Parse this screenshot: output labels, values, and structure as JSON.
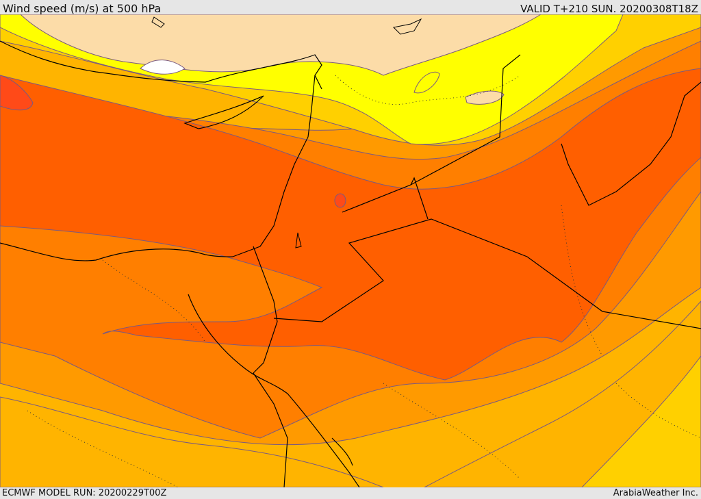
{
  "header": {
    "title": "Wind speed (m/s) at 500 hPa",
    "valid_time": "VALID T+210 SUN. 20200308T18Z"
  },
  "footer": {
    "model_run": "ECMWF MODEL RUN: 20200229T00Z",
    "provider": "ArabiaWeather Inc."
  },
  "colors": {
    "band_white": "#ffffff",
    "band_wheat": "#fcdca8",
    "band_yellow": "#ffff00",
    "band_gold": "#ffd000",
    "band_amber": "#ffb400",
    "band_orange": "#ff9a00",
    "band_dark_orange": "#ff7f00",
    "band_red_orange": "#ff5f00",
    "band_red": "#ff4a18",
    "contour_line": "#7a5a80",
    "coastline": "#000000"
  }
}
